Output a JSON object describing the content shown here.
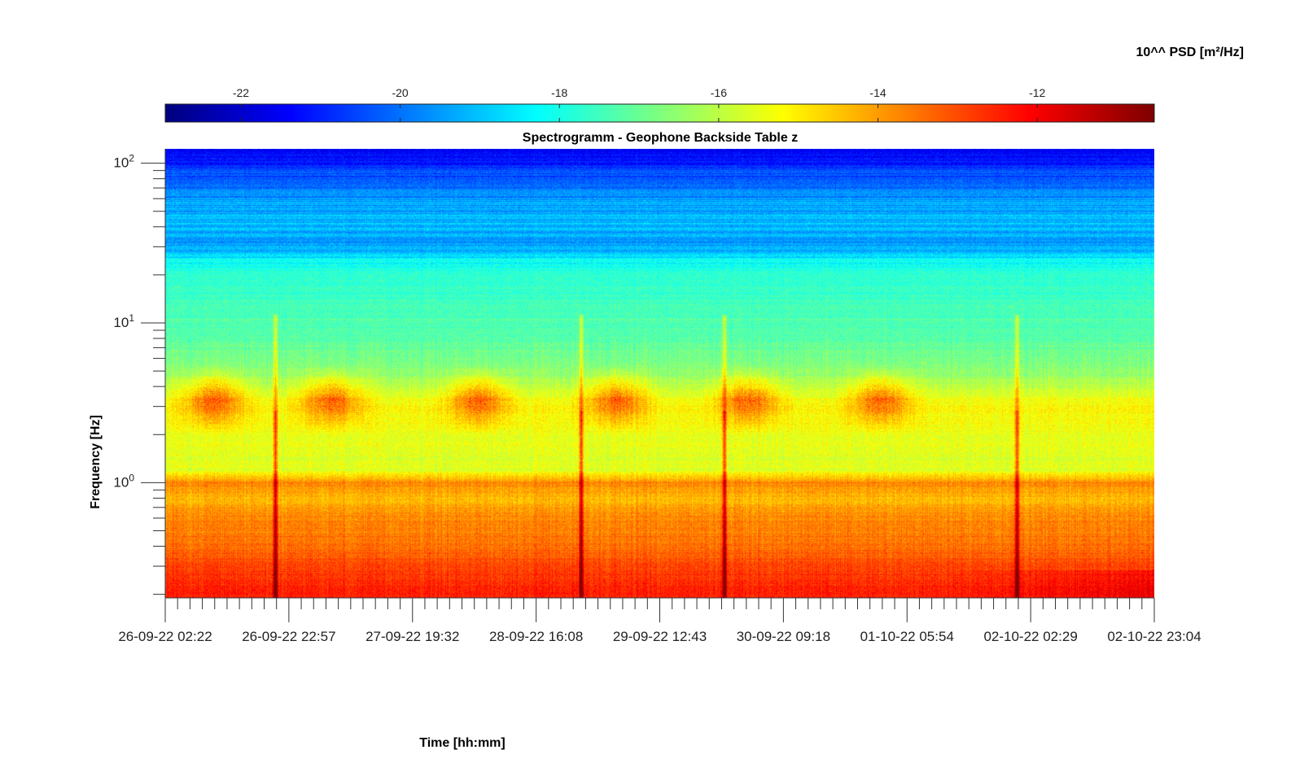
{
  "chart_data": {
    "type": "heatmap",
    "title": "Spectrogramm - Geophone Backside Table z",
    "xlabel": "Time [hh:mm]",
    "ylabel": "Frequency [Hz]",
    "colorbar_label": "10^^ PSD [m²/Hz]",
    "colormap": "jet",
    "y_scale": "log",
    "ylim": [
      0.19,
      123
    ],
    "color_range": [
      -22.95,
      -10.53
    ],
    "colorbar_ticks": [
      -22,
      -20,
      -18,
      -16,
      -14,
      -12
    ],
    "colorbar_tick_labels": [
      "-22",
      "-20",
      "-18",
      "-16",
      "-14",
      "-12"
    ],
    "y_ticks": [
      1,
      10,
      100
    ],
    "y_tick_labels": [
      {
        "base": "10",
        "exp": "0"
      },
      {
        "base": "10",
        "exp": "1"
      },
      {
        "base": "10",
        "exp": "2"
      }
    ],
    "x_tick_labels": [
      "26-09-22 02:22",
      "26-09-22 22:57",
      "27-09-22 19:32",
      "28-09-22 16:08",
      "29-09-22 12:43",
      "30-09-22 09:18",
      "01-10-22 05:54",
      "02-10-22 02:29",
      "02-10-22 23:04"
    ],
    "x_range": [
      "26-09-22 02:22",
      "02-10-22 23:04"
    ],
    "psd_profile": {
      "freq_hz": [
        123,
        100,
        60,
        40,
        30,
        25,
        21,
        15,
        12,
        8,
        5,
        3,
        2,
        1.2,
        1.0,
        0.8,
        0.6,
        0.4,
        0.3,
        0.2
      ],
      "log_psd": [
        -21.6,
        -21.0,
        -19.5,
        -19.2,
        -19.5,
        -18.4,
        -17.8,
        -17.6,
        -17.4,
        -17.2,
        -16.6,
        -15.1,
        -15.4,
        -15.6,
        -13.6,
        -14.4,
        -13.7,
        -13.5,
        -12.9,
        -12.4
      ]
    },
    "day_activity_hz_band": [
      2.0,
      5.5
    ],
    "day_activity_centers": [
      "26-09-22 10:30",
      "27-09-22 06:00",
      "28-09-22 06:30",
      "29-09-22 05:30",
      "30-09-22 03:30",
      "01-10-22 01:30"
    ],
    "transient_events": [
      "26-09-22 20:40",
      "28-09-22 23:36",
      "29-09-22 23:25",
      "02-10-22 00:10"
    ]
  }
}
